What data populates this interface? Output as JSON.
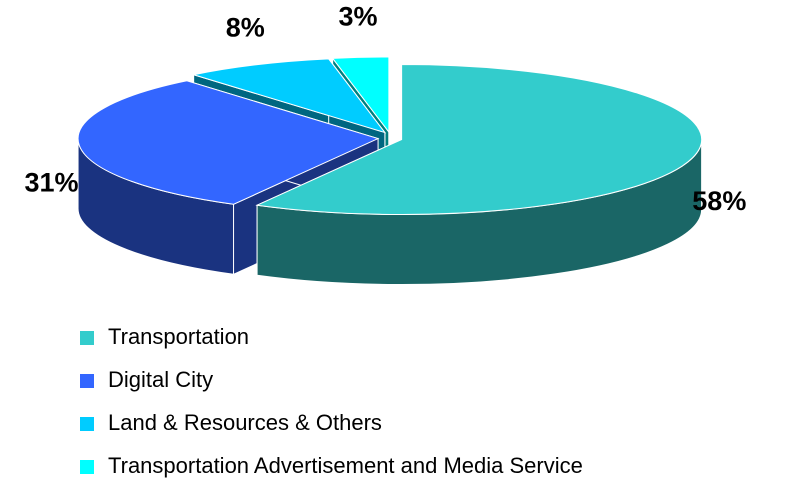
{
  "chart_data": {
    "type": "pie",
    "categories": [
      "Transportation",
      "Digital City",
      "Land & Resources & Others",
      "Transportation Advertisement and Media Service"
    ],
    "values": [
      58,
      31,
      8,
      3
    ],
    "value_labels": [
      "58%",
      "31%",
      "8%",
      "3%"
    ],
    "colors": [
      "#33cccc",
      "#3366ff",
      "#00ccff",
      "#00ffff"
    ],
    "legend": "bottom"
  }
}
